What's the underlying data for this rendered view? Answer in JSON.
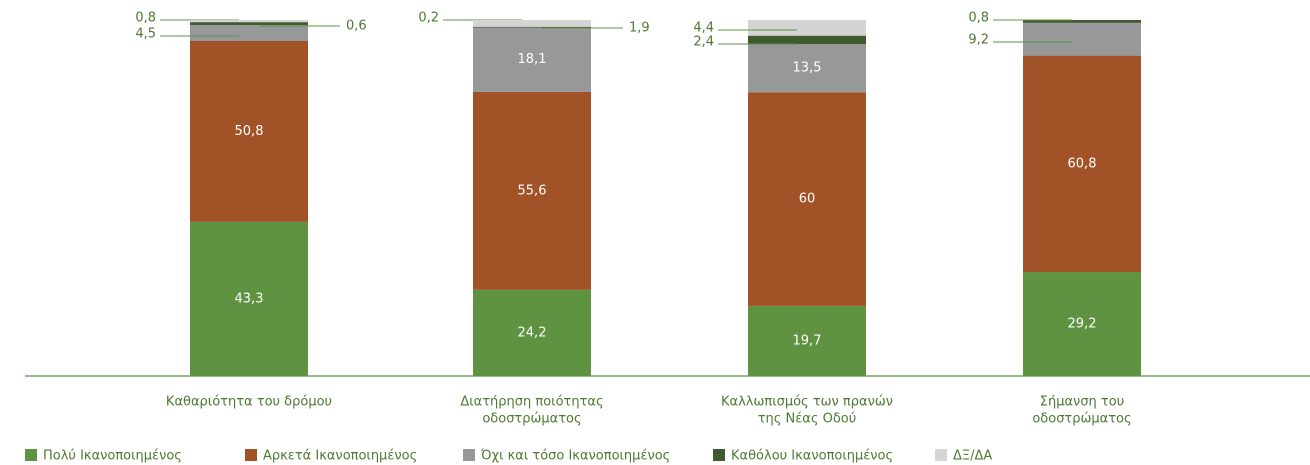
{
  "chart_data": {
    "type": "stacked_bar",
    "categories": [
      [
        "Καθαριότητα του δρόμου"
      ],
      [
        "Διατήρηση ποιότητας",
        "οδοστρώματος"
      ],
      [
        "Καλλωπισμός των πρανών",
        "της Νέας Οδού"
      ],
      [
        "Σήμανση του",
        "οδοστρώματος"
      ]
    ],
    "series": [
      {
        "name": "Πολύ Ικανοποιημένος",
        "color": "#5f9341",
        "values": [
          43.3,
          24.2,
          19.7,
          29.2
        ],
        "value_labels": [
          "43,3",
          "24,2",
          "19,7",
          "29,2"
        ]
      },
      {
        "name": "Αρκετά Ικανοποιημένος",
        "color": "#a15226",
        "values": [
          50.8,
          55.6,
          60,
          60.8
        ],
        "value_labels": [
          "50,8",
          "55,6",
          "60",
          "60,8"
        ]
      },
      {
        "name": "Όχι και τόσο Ικανοποιημένος",
        "color": "#97989a",
        "values": [
          4.5,
          18.1,
          13.5,
          9.2
        ],
        "value_labels": [
          "4,5",
          "18,1",
          "13,5",
          "9,2"
        ]
      },
      {
        "name": "Καθόλου Ικανοποιημένος",
        "color": "#3f5a2e",
        "values": [
          0.8,
          0.2,
          2.4,
          0.8
        ],
        "value_labels": [
          "0,8",
          "0,2",
          "2,4",
          "0,8"
        ]
      },
      {
        "name": "ΔΞ/ΔΑ",
        "color": "#d4d4d4",
        "values": [
          0.6,
          1.9,
          4.4,
          null
        ],
        "value_labels": [
          "0,6",
          "1,9",
          "4,4",
          null
        ]
      }
    ],
    "ylim": [
      0,
      100
    ]
  }
}
